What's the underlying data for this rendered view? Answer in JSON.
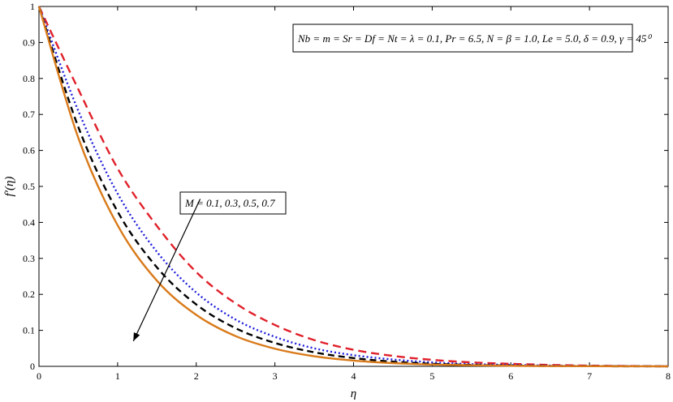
{
  "chart_data": {
    "type": "line",
    "xlabel": "η",
    "ylabel": "f′(η)",
    "xlim": [
      0,
      8
    ],
    "ylim": [
      0,
      1
    ],
    "xticks": [
      0,
      1,
      2,
      3,
      4,
      5,
      6,
      7,
      8
    ],
    "yticks": [
      0,
      0.1,
      0.2,
      0.3,
      0.4,
      0.5,
      0.6,
      0.7,
      0.8,
      0.9,
      1
    ],
    "grid": false,
    "parameter_box": "Nb = m = Sr = Df = Nt = λ = 0.1, Pr = 6.5, N = β = 1.0, Le = 5.0, δ = 0.9, γ = 45⁰",
    "annotation": "M = 0.1, 0.3, 0.5, 0.7",
    "arrow": {
      "from": [
        2.05,
        0.465
      ],
      "to": [
        1.2,
        0.07
      ]
    },
    "x": [
      0,
      0.5,
      1,
      1.5,
      2,
      2.5,
      3,
      3.5,
      4,
      4.5,
      5,
      5.5,
      6,
      6.5,
      7,
      7.5,
      8
    ],
    "series": [
      {
        "color": "#e0202a",
        "dash": "10,6",
        "values": [
          1.0,
          0.77,
          0.55,
          0.39,
          0.262,
          0.175,
          0.115,
          0.073,
          0.046,
          0.029,
          0.018,
          0.011,
          0.007,
          0.004,
          0.002,
          0.001,
          0.0
        ]
      },
      {
        "color": "#1f1fdc",
        "dash": "2,3",
        "values": [
          1.0,
          0.71,
          0.48,
          0.318,
          0.205,
          0.13,
          0.082,
          0.05,
          0.031,
          0.019,
          0.011,
          0.006,
          0.004,
          0.002,
          0.001,
          0.0005,
          0.0
        ]
      },
      {
        "color": "#000000",
        "dash": "8,5",
        "values": [
          1.0,
          0.665,
          0.43,
          0.275,
          0.172,
          0.106,
          0.065,
          0.039,
          0.023,
          0.013,
          0.007,
          0.004,
          0.002,
          0.001,
          0.0005,
          0.0002,
          0.0
        ]
      },
      {
        "color": "#d97a1a",
        "dash": "",
        "values": [
          1.0,
          0.635,
          0.392,
          0.238,
          0.143,
          0.084,
          0.049,
          0.028,
          0.016,
          0.009,
          0.005,
          0.003,
          0.0015,
          0.0008,
          0.0004,
          0.0002,
          0.0
        ]
      }
    ]
  }
}
